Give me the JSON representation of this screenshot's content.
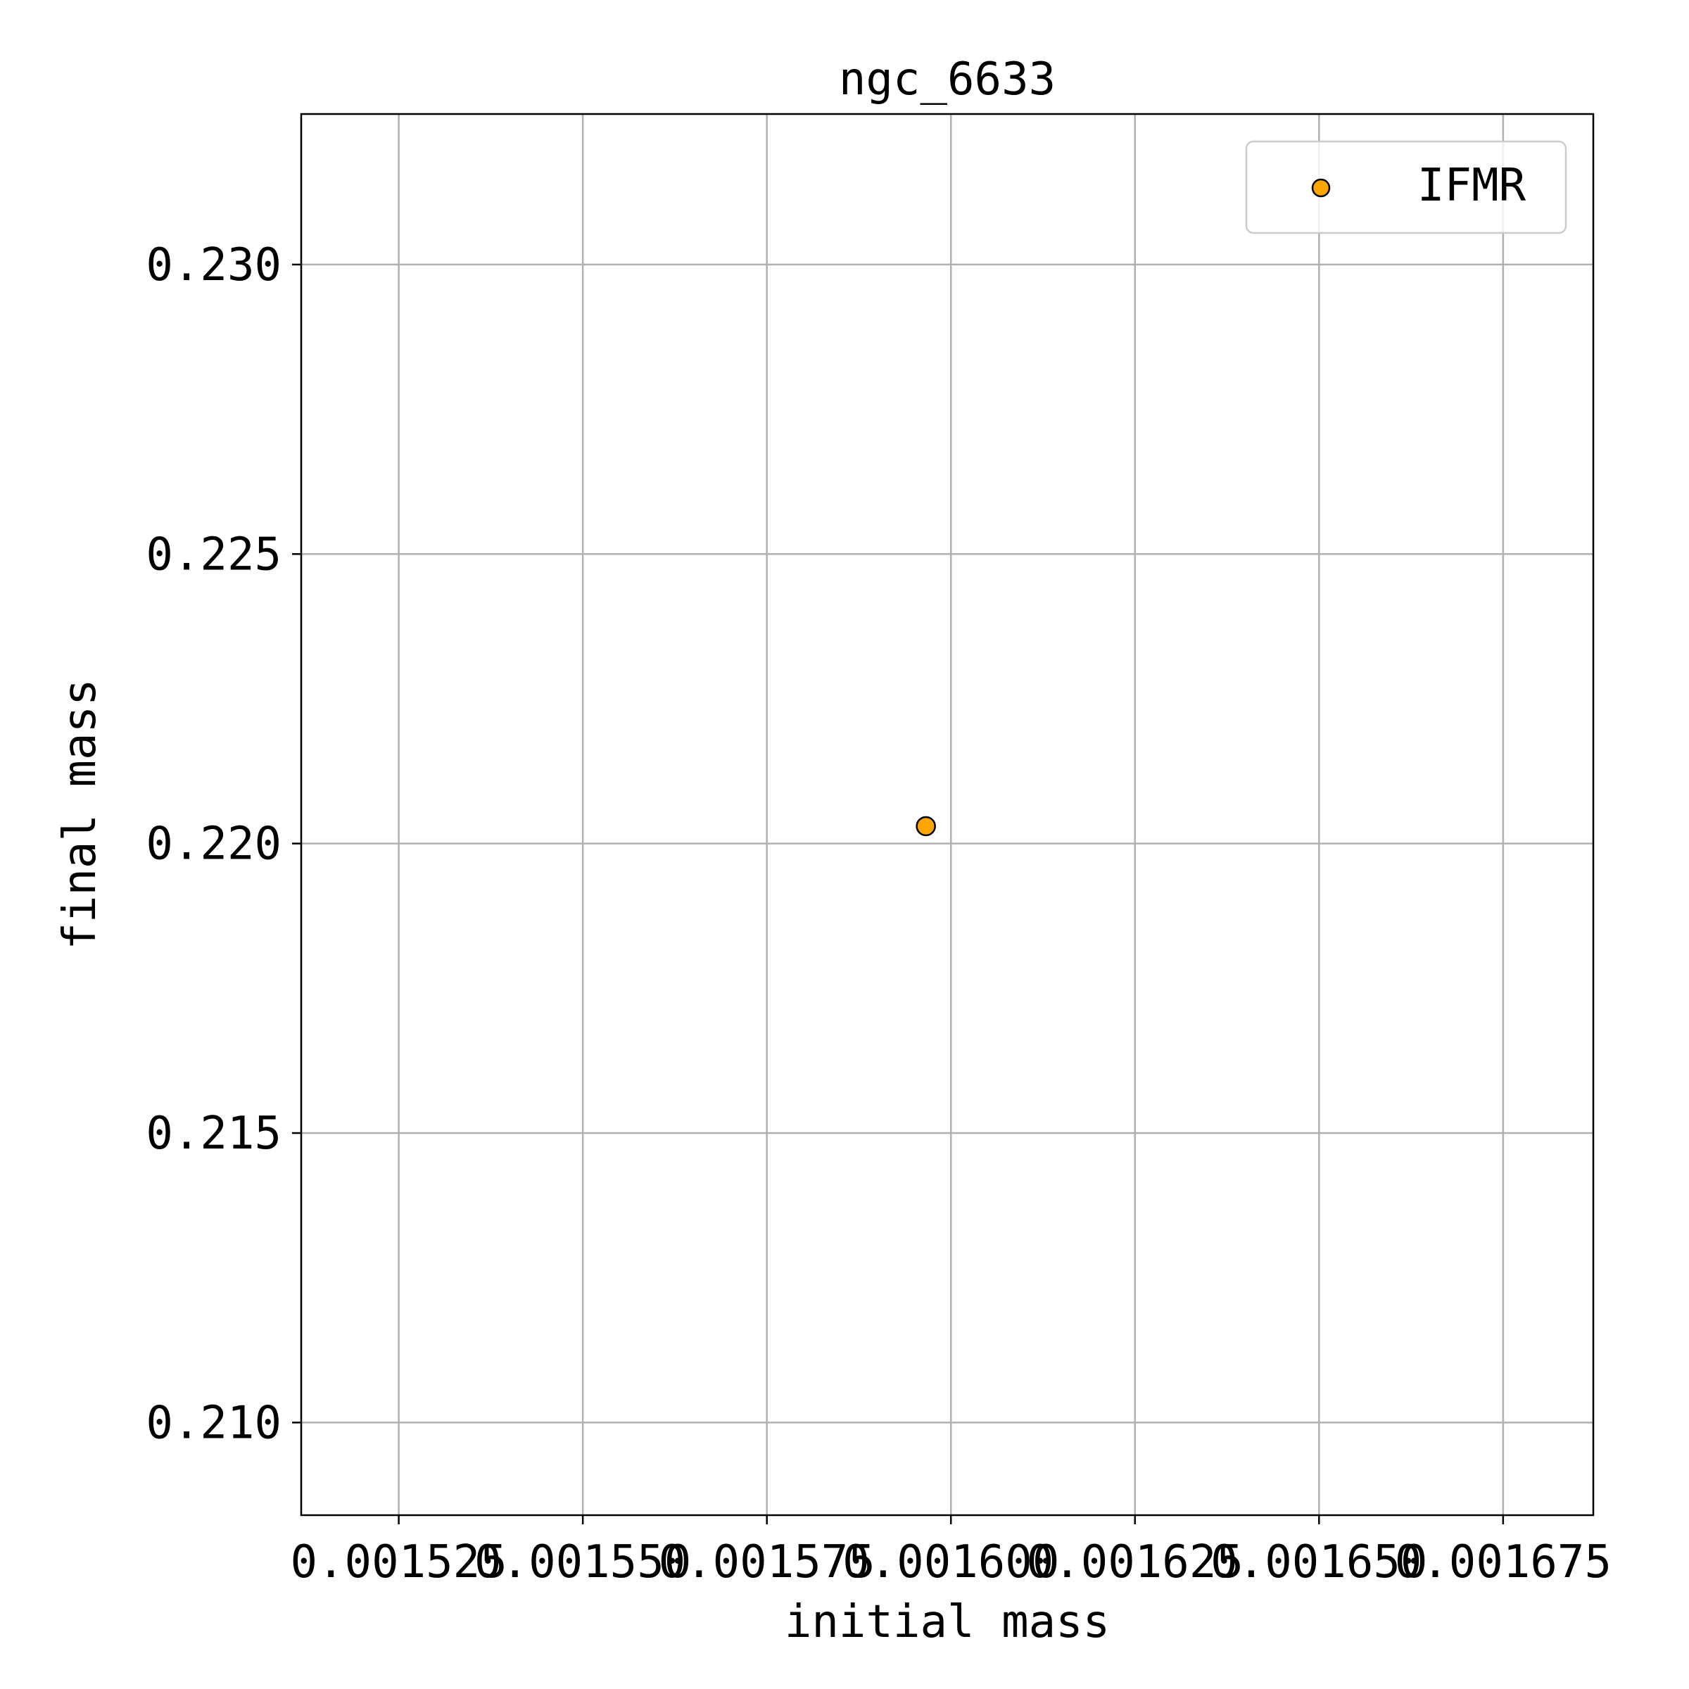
{
  "chart_data": {
    "type": "scatter",
    "title": "ngc_6633",
    "xlabel": "initial mass",
    "ylabel": "final mass",
    "xlim": [
      0.00151175,
      0.00168725
    ],
    "ylim": [
      0.2084,
      0.2326
    ],
    "x_ticks": [
      0.001525,
      0.00155,
      0.001575,
      0.0016,
      0.001625,
      0.00165,
      0.001675
    ],
    "x_tick_labels": [
      "0.001525",
      "0.001550",
      "0.001575",
      "0.001600",
      "0.001625",
      "0.001650",
      "0.001675"
    ],
    "y_ticks": [
      0.21,
      0.215,
      0.22,
      0.225,
      0.23
    ],
    "y_tick_labels": [
      "0.210",
      "0.215",
      "0.220",
      "0.225",
      "0.230"
    ],
    "grid": true,
    "legend_position": "top-right",
    "series": [
      {
        "name": "IFMR",
        "color": "#FFA500",
        "edge_color": "#000000",
        "points": [
          {
            "x": 0.0015966,
            "y": 0.2203
          }
        ]
      }
    ]
  }
}
